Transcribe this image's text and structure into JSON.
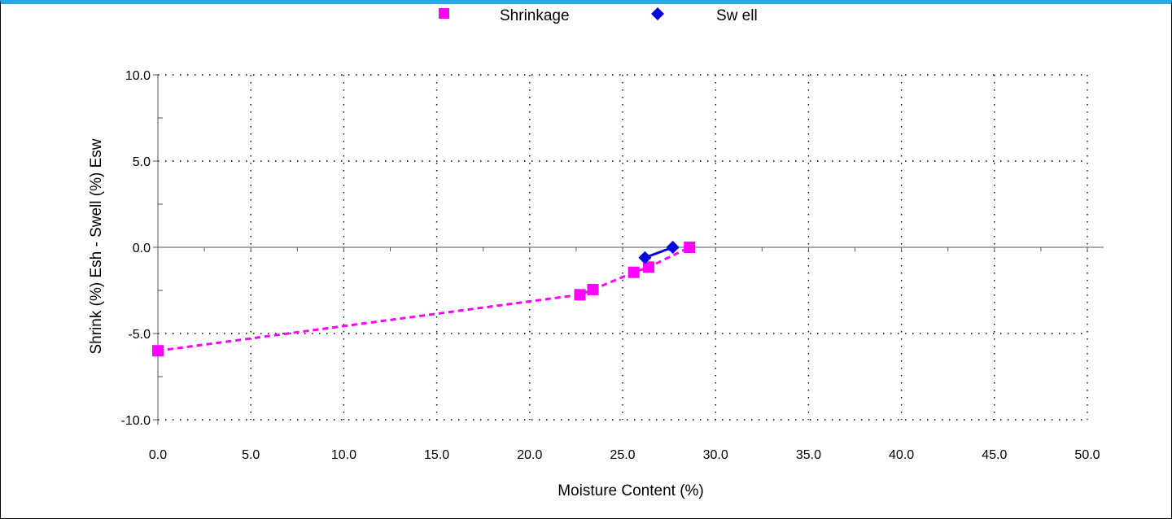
{
  "chart_data": {
    "type": "line",
    "title": "",
    "xlabel": "Moisture Content (%)",
    "ylabel": "Shrink (%) Esh - Swell (%) Esw",
    "xlim": [
      0,
      50
    ],
    "ylim": [
      -10,
      10
    ],
    "x_ticks": [
      "0.0",
      "5.0",
      "10.0",
      "15.0",
      "20.0",
      "25.0",
      "30.0",
      "35.0",
      "40.0",
      "45.0",
      "50.0"
    ],
    "y_ticks": [
      "10.0",
      "5.0",
      "0.0",
      "-5.0",
      "-10.0"
    ],
    "grid": true,
    "legend_position": "top",
    "series": [
      {
        "name": "Shrinkage",
        "color": "#ff00ff",
        "marker": "square",
        "line_style": "dashed",
        "points": [
          [
            0.0,
            -6.0
          ],
          [
            22.7,
            -2.75
          ],
          [
            23.4,
            -2.45
          ],
          [
            25.6,
            -1.45
          ],
          [
            26.4,
            -1.15
          ],
          [
            28.6,
            0.0
          ]
        ]
      },
      {
        "name": "Sw ell",
        "color": "#0000e0",
        "marker": "diamond",
        "line_style": "solid",
        "points": [
          [
            26.2,
            -0.6
          ],
          [
            27.7,
            0.0
          ]
        ]
      }
    ]
  }
}
